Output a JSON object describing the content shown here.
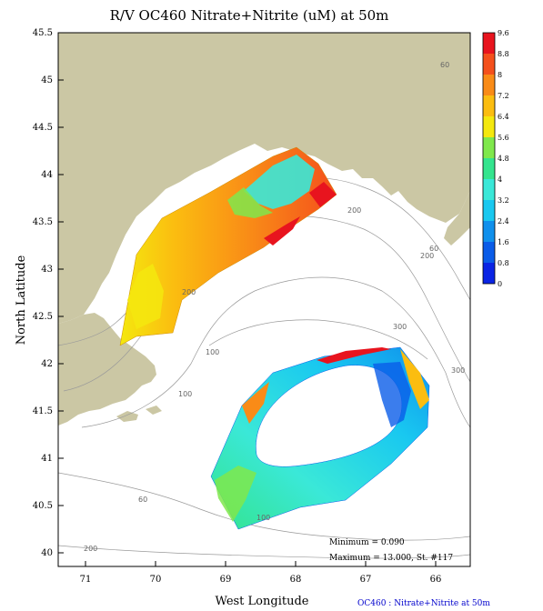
{
  "title": "R/V OC460 Nitrate+Nitrite (uM) at 50m",
  "xlabel": "West Longitude",
  "ylabel": "North Latitude",
  "x_ticks": [
    "71",
    "70",
    "69",
    "68",
    "67",
    "66"
  ],
  "y_ticks": [
    "45.5",
    "45",
    "44.5",
    "44",
    "43.5",
    "43",
    "42.5",
    "42",
    "41.5",
    "41",
    "40.5",
    "40"
  ],
  "colorbar": {
    "labels": [
      "9.6",
      "8.8",
      "8",
      "7.2",
      "6.4",
      "5.6",
      "4.8",
      "4",
      "3.2",
      "2.4",
      "1.6",
      "0.8",
      "0"
    ],
    "colors": [
      "#e8141e",
      "#f4501c",
      "#f98b17",
      "#fbbd10",
      "#f4e80e",
      "#7fe84c",
      "#34e48e",
      "#3ae8d8",
      "#19c8f0",
      "#1090ec",
      "#0a5ce8",
      "#0a24e4"
    ]
  },
  "stats": {
    "minimum": "Minimum = 0.090",
    "maximum": "Maximum = 13.000, St. #117"
  },
  "footer": "OC460 : Nitrate+Nitrite at 50m",
  "isobath_labels": [
    "60",
    "60",
    "200",
    "200",
    "300",
    "200",
    "100",
    "100",
    "300",
    "60",
    "100",
    "200"
  ],
  "colors": {
    "land": "#cbc7a4",
    "footer_text": "#0000cc"
  }
}
